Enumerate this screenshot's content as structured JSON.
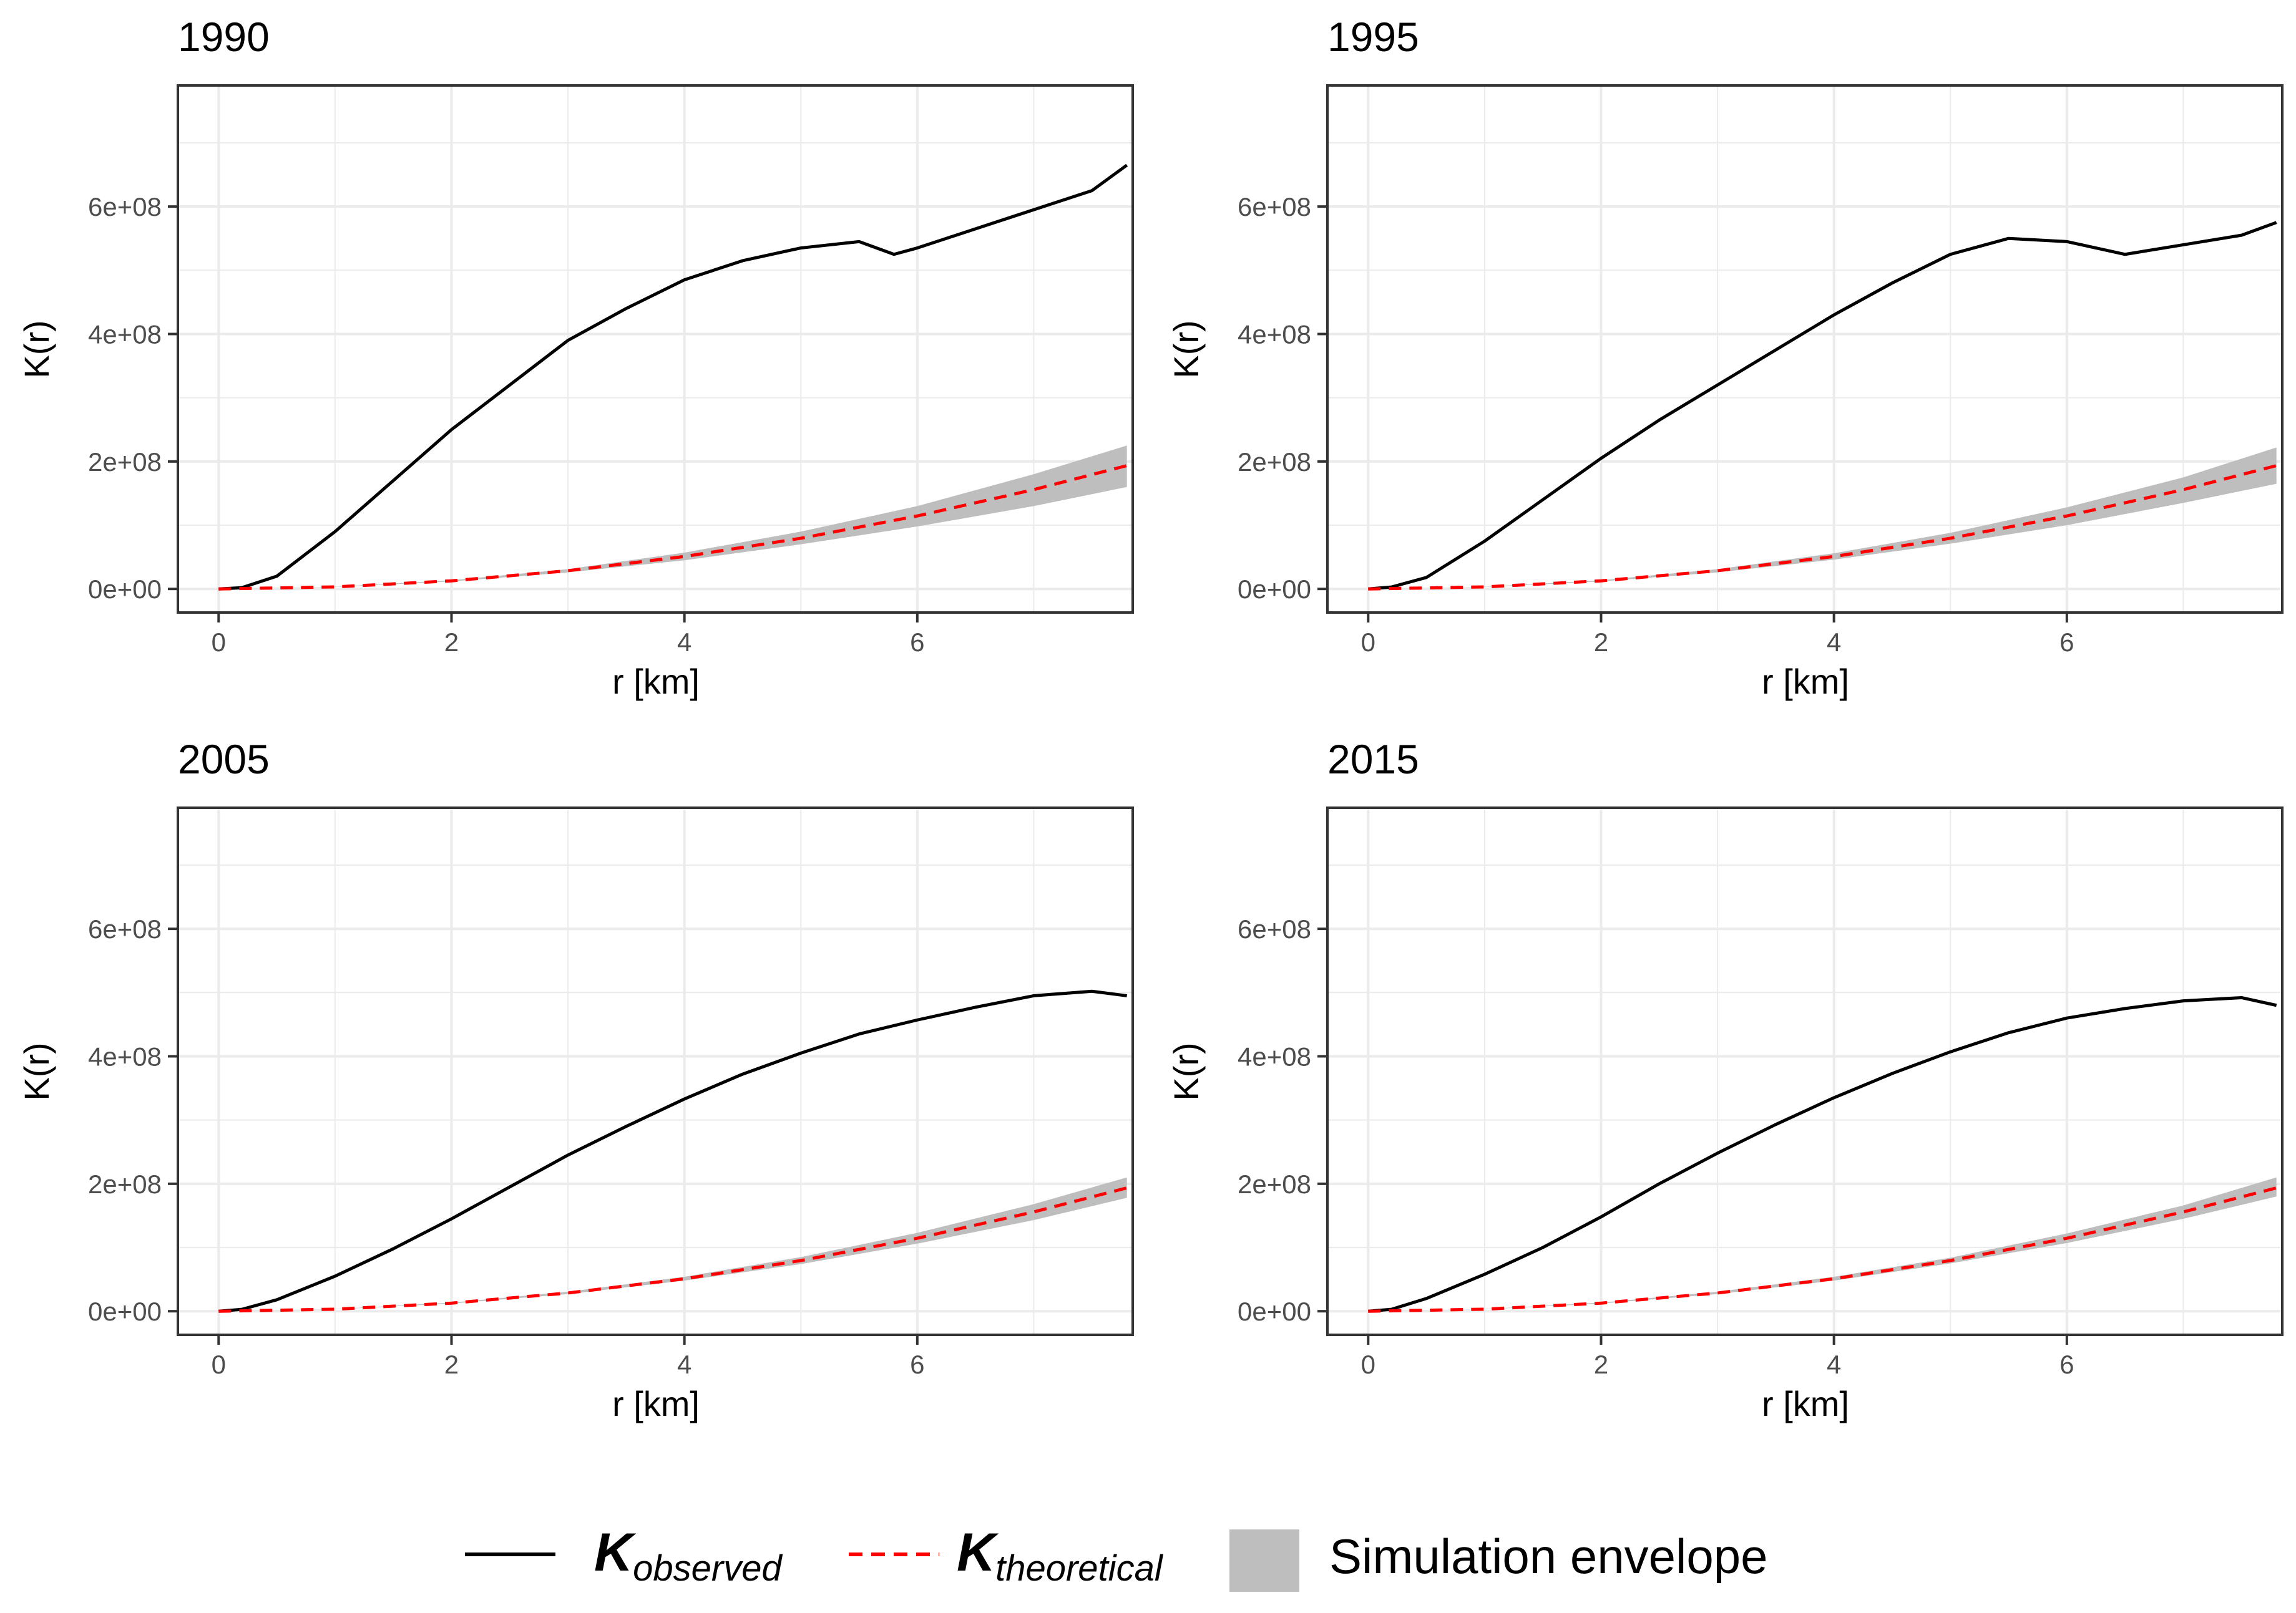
{
  "chart_data": [
    {
      "type": "line",
      "title": "1990",
      "xlabel": "r [km]",
      "ylabel": "K(r)",
      "xlim": [
        -0.35,
        7.85
      ],
      "ylim": [
        -37000000,
        790000000
      ],
      "x_ticks": [
        0,
        2,
        4,
        6
      ],
      "x_tick_labels": [
        "0",
        "2",
        "4",
        "6"
      ],
      "y_ticks": [
        0,
        200000000,
        400000000,
        600000000
      ],
      "y_tick_labels": [
        "0e+00",
        "2e+08",
        "4e+08",
        "6e+08"
      ],
      "grid": true,
      "series": [
        {
          "name": "K_observed",
          "x": [
            0,
            0.2,
            0.5,
            1,
            1.5,
            2,
            2.5,
            3,
            3.5,
            4,
            4.5,
            5,
            5.5,
            5.8,
            6,
            6.5,
            7,
            7.5,
            7.8
          ],
          "values": [
            0,
            2000000,
            20000000,
            90000000,
            170000000,
            250000000,
            320000000,
            390000000,
            440000000,
            485000000,
            515000000,
            535000000,
            545000000,
            525000000,
            535000000,
            565000000,
            595000000,
            625000000,
            665000000
          ]
        },
        {
          "name": "K_theoretical",
          "x": [
            0,
            1,
            2,
            3,
            4,
            5,
            6,
            7,
            7.8
          ],
          "values": [
            0,
            3200000,
            12700000,
            28600000,
            50900000,
            79500000,
            114500000,
            155800000,
            193500000
          ]
        }
      ],
      "envelope": {
        "x": [
          0,
          1,
          2,
          3,
          4,
          5,
          6,
          7,
          7.8
        ],
        "lower": [
          0,
          3000000,
          11800000,
          26000000,
          45000000,
          70000000,
          98000000,
          130000000,
          160000000
        ],
        "upper": [
          0,
          3400000,
          13600000,
          31000000,
          57000000,
          90000000,
          130000000,
          180000000,
          225000000
        ]
      }
    },
    {
      "type": "line",
      "title": "1995",
      "xlabel": "r [km]",
      "ylabel": "K(r)",
      "xlim": [
        -0.35,
        7.85
      ],
      "ylim": [
        -37000000,
        790000000
      ],
      "x_ticks": [
        0,
        2,
        4,
        6
      ],
      "x_tick_labels": [
        "0",
        "2",
        "4",
        "6"
      ],
      "y_ticks": [
        0,
        200000000,
        400000000,
        600000000
      ],
      "y_tick_labels": [
        "0e+00",
        "2e+08",
        "4e+08",
        "6e+08"
      ],
      "grid": true,
      "series": [
        {
          "name": "K_observed",
          "x": [
            0,
            0.2,
            0.5,
            1,
            1.5,
            2,
            2.5,
            3,
            3.5,
            4,
            4.5,
            5,
            5.5,
            6,
            6.5,
            7,
            7.5,
            7.8
          ],
          "values": [
            0,
            3000000,
            18000000,
            75000000,
            140000000,
            205000000,
            265000000,
            320000000,
            375000000,
            430000000,
            480000000,
            525000000,
            550000000,
            545000000,
            525000000,
            540000000,
            555000000,
            575000000
          ]
        },
        {
          "name": "K_theoretical",
          "x": [
            0,
            1,
            2,
            3,
            4,
            5,
            6,
            7,
            7.8
          ],
          "values": [
            0,
            3200000,
            12700000,
            28600000,
            50900000,
            79500000,
            114500000,
            155800000,
            193500000
          ]
        }
      ],
      "envelope": {
        "x": [
          0,
          1,
          2,
          3,
          4,
          5,
          6,
          7,
          7.8
        ],
        "lower": [
          0,
          3000000,
          11800000,
          26000000,
          46000000,
          71000000,
          100000000,
          135000000,
          165000000
        ],
        "upper": [
          0,
          3400000,
          13600000,
          31000000,
          56000000,
          88000000,
          128000000,
          175000000,
          222000000
        ]
      }
    },
    {
      "type": "line",
      "title": "2005",
      "xlabel": "r [km]",
      "ylabel": "K(r)",
      "xlim": [
        -0.35,
        7.85
      ],
      "ylim": [
        -37000000,
        790000000
      ],
      "x_ticks": [
        0,
        2,
        4,
        6
      ],
      "x_tick_labels": [
        "0",
        "2",
        "4",
        "6"
      ],
      "y_ticks": [
        0,
        200000000,
        400000000,
        600000000
      ],
      "y_tick_labels": [
        "0e+00",
        "2e+08",
        "4e+08",
        "6e+08"
      ],
      "grid": true,
      "series": [
        {
          "name": "K_observed",
          "x": [
            0,
            0.2,
            0.5,
            1,
            1.5,
            2,
            2.5,
            3,
            3.5,
            4,
            4.5,
            5,
            5.5,
            6,
            6.5,
            7,
            7.5,
            7.8
          ],
          "values": [
            0,
            3000000,
            18000000,
            55000000,
            98000000,
            145000000,
            195000000,
            245000000,
            290000000,
            333000000,
            372000000,
            405000000,
            435000000,
            457000000,
            477000000,
            495000000,
            502000000,
            495000000
          ]
        },
        {
          "name": "K_theoretical",
          "x": [
            0,
            1,
            2,
            3,
            4,
            5,
            6,
            7,
            7.8
          ],
          "values": [
            0,
            3200000,
            12700000,
            28600000,
            50900000,
            79500000,
            114500000,
            155800000,
            193500000
          ]
        }
      ],
      "envelope": {
        "x": [
          0,
          1,
          2,
          3,
          4,
          5,
          6,
          7,
          7.8
        ],
        "lower": [
          0,
          3000000,
          12000000,
          27000000,
          48000000,
          74000000,
          106000000,
          143000000,
          178000000
        ],
        "upper": [
          0,
          3400000,
          13500000,
          30500000,
          54000000,
          85000000,
          123000000,
          168000000,
          210000000
        ]
      }
    },
    {
      "type": "line",
      "title": "2015",
      "xlabel": "r [km]",
      "ylabel": "K(r)",
      "xlim": [
        -0.35,
        7.85
      ],
      "ylim": [
        -37000000,
        790000000
      ],
      "x_ticks": [
        0,
        2,
        4,
        6
      ],
      "x_tick_labels": [
        "0",
        "2",
        "4",
        "6"
      ],
      "y_ticks": [
        0,
        200000000,
        400000000,
        600000000
      ],
      "y_tick_labels": [
        "0e+00",
        "2e+08",
        "4e+08",
        "6e+08"
      ],
      "grid": true,
      "series": [
        {
          "name": "K_observed",
          "x": [
            0,
            0.2,
            0.5,
            1,
            1.5,
            2,
            2.5,
            3,
            3.5,
            4,
            4.5,
            5,
            5.5,
            6,
            6.5,
            7,
            7.5,
            7.8
          ],
          "values": [
            0,
            3000000,
            20000000,
            58000000,
            100000000,
            148000000,
            200000000,
            248000000,
            293000000,
            335000000,
            373000000,
            407000000,
            437000000,
            460000000,
            475000000,
            487000000,
            492000000,
            480000000
          ]
        },
        {
          "name": "K_theoretical",
          "x": [
            0,
            1,
            2,
            3,
            4,
            5,
            6,
            7,
            7.8
          ],
          "values": [
            0,
            3200000,
            12700000,
            28600000,
            50900000,
            79500000,
            114500000,
            155800000,
            193500000
          ]
        }
      ],
      "envelope": {
        "x": [
          0,
          1,
          2,
          3,
          4,
          5,
          6,
          7,
          7.8
        ],
        "lower": [
          0,
          3000000,
          12000000,
          27000000,
          48000000,
          75000000,
          107000000,
          145000000,
          180000000
        ],
        "upper": [
          0,
          3400000,
          13500000,
          30500000,
          54000000,
          84000000,
          122000000,
          166000000,
          210000000
        ]
      }
    }
  ],
  "legend": {
    "observed_main": "K",
    "observed_sub": "observed",
    "theoretical_main": "K",
    "theoretical_sub": "theoretical",
    "envelope_label": "Simulation envelope"
  },
  "colors": {
    "observed": "#000000",
    "theoretical": "#ff0000",
    "envelope": "#bebebe",
    "grid": "#ebebeb",
    "border": "#333333",
    "tick_text": "#4d4d4d"
  }
}
